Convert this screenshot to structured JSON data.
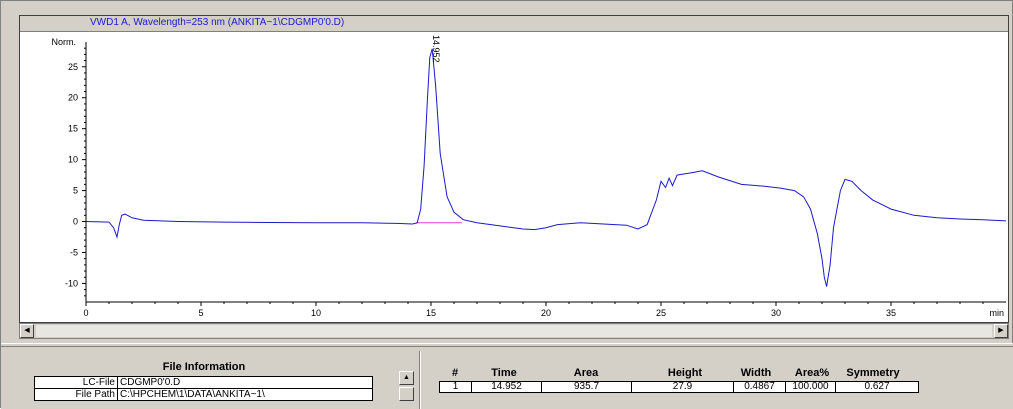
{
  "chart_panel": {
    "title": "VWD1 A, Wavelength=253 nm (ANKITA~1\\CDGMP0'0.D)"
  },
  "chart_data": {
    "type": "line",
    "ylabel": "Norm.",
    "xlabel": "min",
    "xlim": [
      0,
      40
    ],
    "ylim": [
      -13,
      29
    ],
    "x_ticks": [
      0,
      5,
      10,
      15,
      20,
      25,
      30,
      35
    ],
    "y_ticks": [
      -10,
      -5,
      0,
      5,
      10,
      15,
      20,
      25
    ],
    "peak_label": "14.952",
    "baseline_segment": {
      "x0": 14.35,
      "x1": 16.35,
      "y": -0.2
    },
    "series": [
      {
        "color": "#1a1acc",
        "x": [
          0,
          1.0,
          1.2,
          1.35,
          1.45,
          1.55,
          1.7,
          2.0,
          2.5,
          4,
          6,
          8,
          10,
          12,
          13.5,
          14.2,
          14.4,
          14.55,
          14.7,
          14.85,
          14.95,
          15.05,
          15.2,
          15.4,
          15.7,
          16.0,
          16.4,
          17,
          18,
          19,
          19.5,
          20,
          20.5,
          21.5,
          22.5,
          23.5,
          24,
          24.4,
          24.6,
          24.8,
          25.0,
          25.2,
          25.35,
          25.5,
          25.7,
          25.85,
          26.2,
          26.8,
          27.5,
          28.5,
          29.5,
          30.2,
          30.8,
          31.2,
          31.5,
          31.8,
          32.0,
          32.1,
          32.2,
          32.35,
          32.5,
          32.8,
          33.0,
          33.3,
          33.7,
          34.2,
          35,
          36,
          37,
          38,
          39,
          40
        ],
        "y": [
          0,
          -0.1,
          -1.0,
          -2.5,
          -0.5,
          1.0,
          1.2,
          0.6,
          0.2,
          0.0,
          -0.1,
          -0.15,
          -0.2,
          -0.2,
          -0.3,
          -0.4,
          -0.2,
          2.0,
          9.0,
          20.0,
          26.5,
          27.9,
          22.0,
          11.0,
          4.0,
          1.5,
          0.3,
          -0.2,
          -0.7,
          -1.2,
          -1.3,
          -1.0,
          -0.5,
          -0.2,
          -0.4,
          -0.6,
          -1.2,
          -0.5,
          1.5,
          3.5,
          6.5,
          5.5,
          7.0,
          5.8,
          7.5,
          7.6,
          7.8,
          8.2,
          7.2,
          6.0,
          5.7,
          5.4,
          5.0,
          4.0,
          2.0,
          -2.0,
          -6.0,
          -9.0,
          -10.5,
          -7.0,
          -1.0,
          5.0,
          6.8,
          6.5,
          5.0,
          3.5,
          2.0,
          1.0,
          0.6,
          0.4,
          0.3,
          0.1
        ]
      }
    ]
  },
  "file_info": {
    "title": "File Information",
    "rows": [
      {
        "label": "LC-File",
        "value": "CDGMP0'0.D"
      },
      {
        "label": "File Path",
        "value": "C:\\HPCHEM\\1\\DATA\\ANKITA~1\\"
      }
    ]
  },
  "peak_table": {
    "headers": [
      "#",
      "Time",
      "Area",
      "Height",
      "Width",
      "Area%",
      "Symmetry"
    ],
    "rows": [
      [
        "1",
        "14.952",
        "935.7",
        "27.9",
        "0.4867",
        "100.000",
        "0.627"
      ]
    ]
  },
  "icons": {
    "scroll_left": "scroll-left-icon",
    "scroll_right": "scroll-right-icon",
    "scroll_up": "scroll-up-icon"
  }
}
